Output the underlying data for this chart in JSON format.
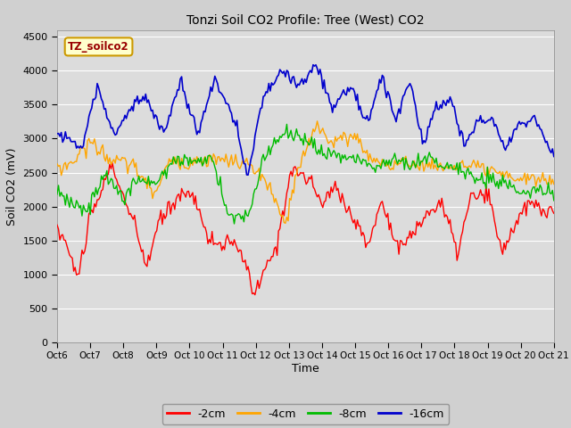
{
  "title": "Tonzi Soil CO2 Profile: Tree (West) CO2",
  "ylabel": "Soil CO2 (mV)",
  "xlabel": "Time",
  "legend_label": "TZ_soilco2",
  "ylim": [
    0,
    4600
  ],
  "yticks": [
    0,
    500,
    1000,
    1500,
    2000,
    2500,
    3000,
    3500,
    4000,
    4500
  ],
  "colors": {
    "-2cm": "#ff0000",
    "-4cm": "#ffa500",
    "-8cm": "#00bb00",
    "-16cm": "#0000cc"
  },
  "fig_bg": "#d0d0d0",
  "plot_bg": "#dcdcdc",
  "legend_box_facecolor": "#ffffcc",
  "legend_box_edgecolor": "#cc9900",
  "n_points": 360,
  "x_start": 6,
  "x_end": 21,
  "xtick_labels": [
    "Oct 6",
    "Oct 7",
    "Oct 8",
    "Oct 9",
    "Oct 10",
    "Oct 11",
    "Oct 12",
    "Oct 13",
    "Oct 14",
    "Oct 15",
    "Oct 16",
    "Oct 17",
    "Oct 18",
    "Oct 19",
    "Oct 20",
    "Oct 21"
  ],
  "xtick_positions": [
    6,
    7,
    8,
    9,
    10,
    11,
    12,
    13,
    14,
    15,
    16,
    17,
    18,
    19,
    20,
    21
  ]
}
